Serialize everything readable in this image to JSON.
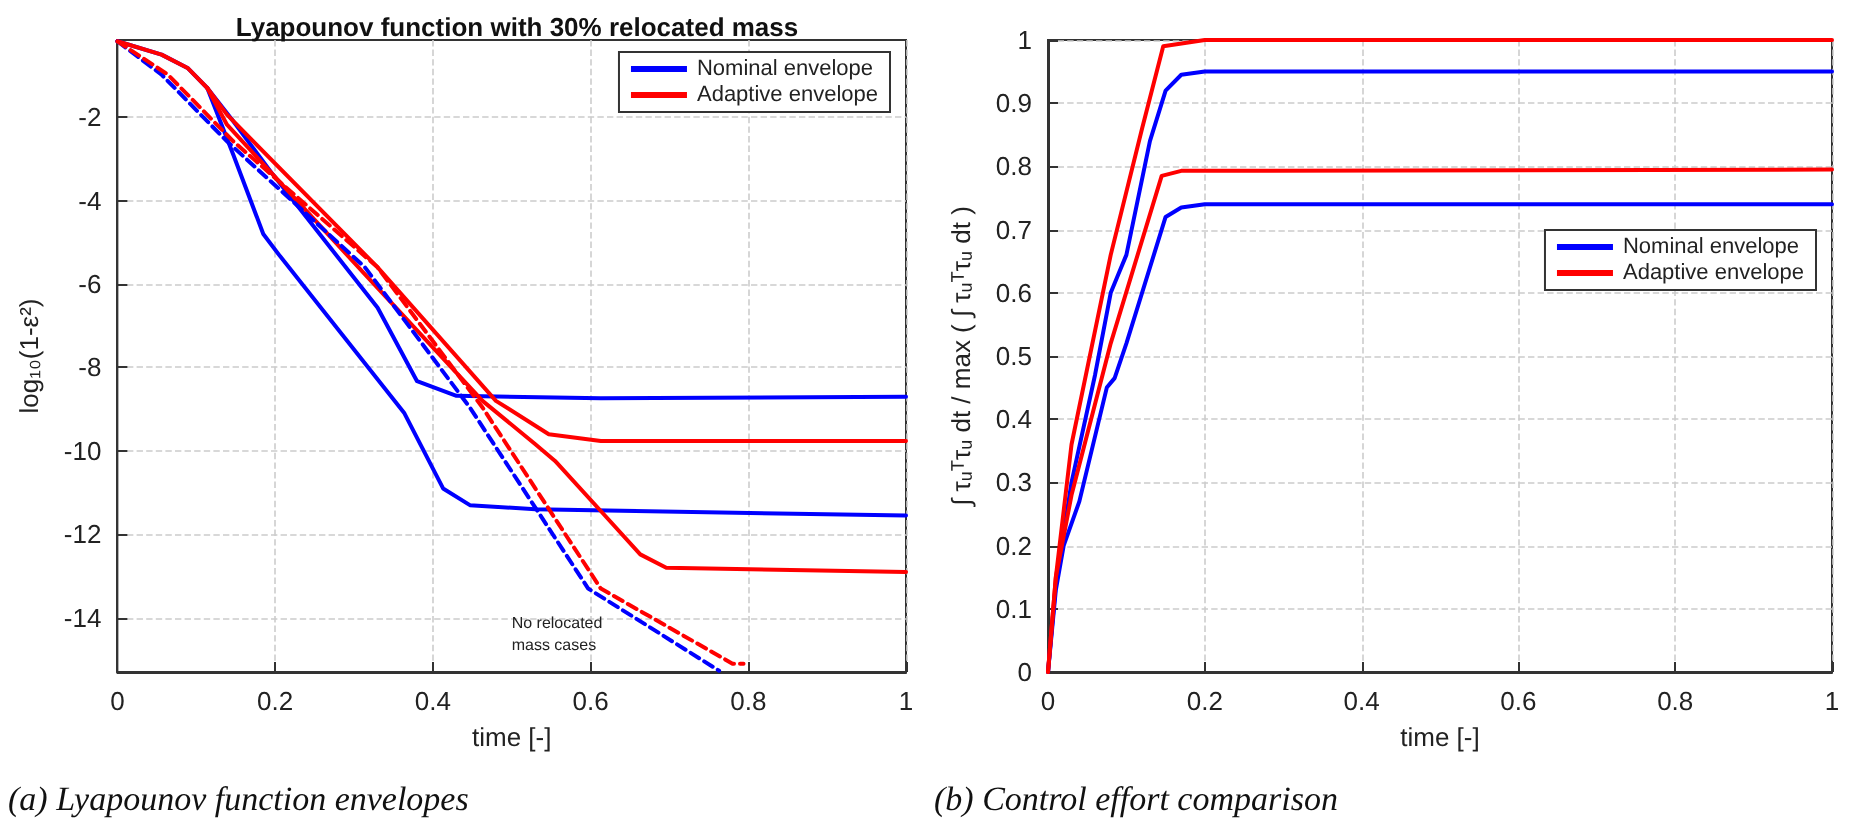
{
  "chart_data": [
    {
      "type": "line",
      "title": "Lyapounov function with 30% relocated mass",
      "xlabel": "time [-]",
      "ylabel": "log₁₀(1-ε²)",
      "xlim": [
        0,
        1
      ],
      "xticks": [
        0,
        0.2,
        0.4,
        0.6,
        0.8,
        1
      ],
      "ylim": [
        -15.3,
        -0.15
      ],
      "yticks": [
        -2,
        -4,
        -6,
        -8,
        -10,
        -12,
        -14
      ],
      "grid": true,
      "legend": "top right",
      "marker": "none",
      "series": [
        {
          "name": "Nominal envelope",
          "color": "#0000ff",
          "x": [
            0,
            0.056,
            0.089,
            0.114,
            0.147,
            0.197,
            0.33,
            0.38,
            0.43,
            0.613,
            1
          ],
          "values": [
            -0.18,
            -0.5,
            -0.82,
            -1.3,
            -2.1,
            -3.37,
            -6.57,
            -8.33,
            -8.68,
            -8.74,
            -8.7
          ]
        },
        {
          "color": "#0000ff",
          "x": [
            0.114,
            0.147,
            0.185,
            0.205,
            0.364,
            0.413,
            0.447,
            0.53,
            1
          ],
          "values": [
            -1.3,
            -2.9,
            -4.8,
            -5.3,
            -9.1,
            -10.9,
            -11.3,
            -11.4,
            -11.55
          ]
        },
        {
          "name": "Adaptive envelope",
          "color": "#ff0000",
          "x": [
            0,
            0.056,
            0.089,
            0.114,
            0.139,
            0.33,
            0.48,
            0.547,
            0.613,
            1
          ],
          "values": [
            -0.18,
            -0.5,
            -0.82,
            -1.3,
            -1.94,
            -5.6,
            -8.8,
            -9.6,
            -9.76,
            -9.76
          ]
        },
        {
          "color": "#ff0000",
          "x": [
            0.114,
            0.139,
            0.314,
            0.463,
            0.53,
            0.555,
            0.613,
            0.663,
            0.696,
            1
          ],
          "values": [
            -1.3,
            -2.18,
            -5.77,
            -8.8,
            -9.84,
            -10.24,
            -11.44,
            -12.48,
            -12.8,
            -12.9
          ]
        },
        {
          "color": "#0000ff",
          "line_style": "dashed",
          "x": [
            0,
            0.056,
            0.139,
            0.314,
            0.447,
            0.597,
            0.763
          ],
          "values": [
            -0.18,
            -0.98,
            -2.58,
            -5.6,
            -8.96,
            -13.3,
            -15.27
          ]
        },
        {
          "color": "#ff0000",
          "line_style": "dashed",
          "x": [
            0,
            0.064,
            0.147,
            0.33,
            0.463,
            0.613,
            0.78,
            0.794
          ],
          "values": [
            -0.18,
            -0.98,
            -2.58,
            -5.6,
            -8.96,
            -13.3,
            -15.1,
            -15.1
          ]
        }
      ],
      "annotations": [
        "No relocated mass cases",
        "(a) Lyapounov function envelopes"
      ]
    },
    {
      "type": "line",
      "xlabel": "time [-]",
      "ylabel": "∫ τᵤᵀτᵤ dt / max ( ∫ τᵤᵀτᵤ dt )",
      "xlim": [
        0,
        1
      ],
      "xticks": [
        0,
        0.2,
        0.4,
        0.6,
        0.8,
        1
      ],
      "ylim": [
        0,
        1
      ],
      "yticks": [
        0,
        0.1,
        0.2,
        0.3,
        0.4,
        0.5,
        0.6,
        0.7,
        0.8,
        0.9,
        1
      ],
      "grid": true,
      "legend": "right",
      "marker": "none",
      "series": [
        {
          "name": "Nominal envelope",
          "color": "#0000ff",
          "x": [
            0,
            0.01,
            0.03,
            0.06,
            0.08,
            0.09,
            0.1,
            0.13,
            0.15,
            0.17,
            0.2,
            1
          ],
          "values": [
            0,
            0.14,
            0.3,
            0.47,
            0.6,
            0.63,
            0.66,
            0.84,
            0.92,
            0.945,
            0.95,
            0.95
          ]
        },
        {
          "color": "#0000ff",
          "x": [
            0,
            0.01,
            0.02,
            0.04,
            0.075,
            0.085,
            0.1,
            0.15,
            0.17,
            0.2,
            1
          ],
          "values": [
            0,
            0.13,
            0.2,
            0.27,
            0.45,
            0.465,
            0.52,
            0.72,
            0.735,
            0.74,
            0.74
          ]
        },
        {
          "name": "Adaptive envelope",
          "color": "#ff0000",
          "x": [
            0,
            0.01,
            0.03,
            0.08,
            0.12,
            0.147,
            0.2,
            1
          ],
          "values": [
            0,
            0.15,
            0.36,
            0.66,
            0.86,
            0.99,
            1,
            1
          ]
        },
        {
          "color": "#ff0000",
          "x": [
            0,
            0.01,
            0.03,
            0.08,
            0.145,
            0.17,
            1
          ],
          "values": [
            0,
            0.15,
            0.28,
            0.52,
            0.785,
            0.793,
            0.795
          ]
        }
      ],
      "annotations": [
        "(b) Control effort comparison"
      ]
    }
  ]
}
